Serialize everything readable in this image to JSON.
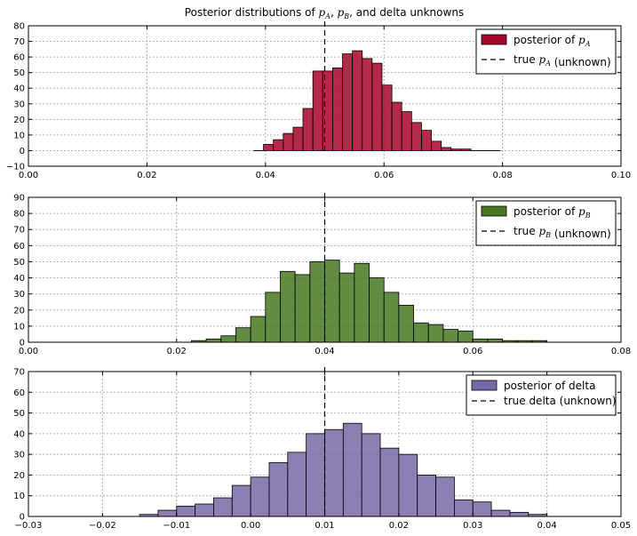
{
  "figure_title": "Posterior distributions of p_A, p_B, and delta unknowns",
  "chart_data": [
    {
      "type": "bar",
      "subtype": "histogram",
      "title": "Posterior distributions of p_A, p_B, and delta unknowns",
      "color": "#A60628",
      "xlim": [
        0.0,
        0.1
      ],
      "ylim": [
        -10,
        80
      ],
      "xticks": [
        0.0,
        0.02,
        0.04,
        0.06,
        0.08,
        0.1
      ],
      "xtick_labels": [
        "0.00",
        "0.02",
        "0.04",
        "0.06",
        "0.08",
        "0.10"
      ],
      "yticks": [
        -10,
        0,
        10,
        20,
        30,
        40,
        50,
        60,
        70,
        80
      ],
      "grid": true,
      "legend_position": "top-right",
      "legend": [
        "posterior of p_A",
        "true p_A (unknown)"
      ],
      "true_value": 0.05,
      "bins": [
        {
          "x": 0.038,
          "y": 0
        },
        {
          "x": 0.039667,
          "y": 4
        },
        {
          "x": 0.041333,
          "y": 7
        },
        {
          "x": 0.043,
          "y": 11
        },
        {
          "x": 0.044667,
          "y": 15
        },
        {
          "x": 0.046333,
          "y": 27
        },
        {
          "x": 0.048,
          "y": 51
        },
        {
          "x": 0.049667,
          "y": 51
        },
        {
          "x": 0.051333,
          "y": 53
        },
        {
          "x": 0.053,
          "y": 62
        },
        {
          "x": 0.054667,
          "y": 64
        },
        {
          "x": 0.056333,
          "y": 59
        },
        {
          "x": 0.058,
          "y": 56
        },
        {
          "x": 0.059667,
          "y": 42
        },
        {
          "x": 0.061333,
          "y": 31
        },
        {
          "x": 0.063,
          "y": 25
        },
        {
          "x": 0.064667,
          "y": 18
        },
        {
          "x": 0.066333,
          "y": 13
        },
        {
          "x": 0.068,
          "y": 6
        },
        {
          "x": 0.069667,
          "y": 2
        },
        {
          "x": 0.071333,
          "y": 1
        },
        {
          "x": 0.073,
          "y": 1
        },
        {
          "x": 0.074667,
          "y": 0
        },
        {
          "x": 0.076333,
          "y": 0
        },
        {
          "x": 0.078,
          "y": 0
        }
      ],
      "bin_width": 0.001667
    },
    {
      "type": "bar",
      "subtype": "histogram",
      "title": "",
      "color": "#467821",
      "xlim": [
        0.0,
        0.08
      ],
      "ylim": [
        0,
        90
      ],
      "xticks": [
        0.0,
        0.02,
        0.04,
        0.06,
        0.08
      ],
      "xtick_labels": [
        "0.00",
        "0.02",
        "0.04",
        "0.06",
        "0.08"
      ],
      "yticks": [
        0,
        10,
        20,
        30,
        40,
        50,
        60,
        70,
        80,
        90
      ],
      "grid": true,
      "legend_position": "top-right",
      "legend": [
        "posterior of p_B",
        "true p_B (unknown)"
      ],
      "true_value": 0.04,
      "bins": [
        {
          "x": 0.02,
          "y": 0
        },
        {
          "x": 0.022,
          "y": 1
        },
        {
          "x": 0.024,
          "y": 2
        },
        {
          "x": 0.026,
          "y": 4
        },
        {
          "x": 0.028,
          "y": 9
        },
        {
          "x": 0.03,
          "y": 16
        },
        {
          "x": 0.032,
          "y": 31
        },
        {
          "x": 0.034,
          "y": 44
        },
        {
          "x": 0.036,
          "y": 42
        },
        {
          "x": 0.038,
          "y": 50
        },
        {
          "x": 0.04,
          "y": 51
        },
        {
          "x": 0.042,
          "y": 43
        },
        {
          "x": 0.044,
          "y": 49
        },
        {
          "x": 0.046,
          "y": 40
        },
        {
          "x": 0.048,
          "y": 31
        },
        {
          "x": 0.05,
          "y": 23
        },
        {
          "x": 0.052,
          "y": 12
        },
        {
          "x": 0.054,
          "y": 11
        },
        {
          "x": 0.056,
          "y": 8
        },
        {
          "x": 0.058,
          "y": 7
        },
        {
          "x": 0.06,
          "y": 2
        },
        {
          "x": 0.062,
          "y": 2
        },
        {
          "x": 0.064,
          "y": 1
        },
        {
          "x": 0.066,
          "y": 1
        },
        {
          "x": 0.068,
          "y": 1
        },
        {
          "x": 0.07,
          "y": 0
        }
      ],
      "bin_width": 0.002
    },
    {
      "type": "bar",
      "subtype": "histogram",
      "title": "",
      "color": "#7A68A6",
      "xlim": [
        -0.03,
        0.05
      ],
      "ylim": [
        0,
        70
      ],
      "xticks": [
        -0.03,
        -0.02,
        -0.01,
        0.0,
        0.01,
        0.02,
        0.03,
        0.04,
        0.05
      ],
      "xtick_labels": [
        "−0.03",
        "−0.02",
        "−0.01",
        "0.00",
        "0.01",
        "0.02",
        "0.03",
        "0.04",
        "0.05"
      ],
      "yticks": [
        0,
        10,
        20,
        30,
        40,
        50,
        60,
        70
      ],
      "grid": true,
      "legend_position": "top-right",
      "legend": [
        "posterior of delta",
        "true delta (unknown)"
      ],
      "true_value": 0.01,
      "bins": [
        {
          "x": -0.0275,
          "y": 0
        },
        {
          "x": -0.025,
          "y": 0
        },
        {
          "x": -0.0225,
          "y": 0
        },
        {
          "x": -0.02,
          "y": 0
        },
        {
          "x": -0.0175,
          "y": 0
        },
        {
          "x": -0.015,
          "y": 1
        },
        {
          "x": -0.0125,
          "y": 3
        },
        {
          "x": -0.01,
          "y": 5
        },
        {
          "x": -0.0075,
          "y": 6
        },
        {
          "x": -0.005,
          "y": 9
        },
        {
          "x": -0.0025,
          "y": 15
        },
        {
          "x": 0.0,
          "y": 19
        },
        {
          "x": 0.0025,
          "y": 26
        },
        {
          "x": 0.005,
          "y": 31
        },
        {
          "x": 0.0075,
          "y": 40
        },
        {
          "x": 0.01,
          "y": 42
        },
        {
          "x": 0.0125,
          "y": 45
        },
        {
          "x": 0.015,
          "y": 40
        },
        {
          "x": 0.0175,
          "y": 33
        },
        {
          "x": 0.02,
          "y": 30
        },
        {
          "x": 0.0225,
          "y": 20
        },
        {
          "x": 0.025,
          "y": 19
        },
        {
          "x": 0.0275,
          "y": 8
        },
        {
          "x": 0.03,
          "y": 7
        },
        {
          "x": 0.0325,
          "y": 3
        },
        {
          "x": 0.035,
          "y": 2
        },
        {
          "x": 0.0375,
          "y": 1
        },
        {
          "x": 0.04,
          "y": 0
        },
        {
          "x": 0.0425,
          "y": 0
        },
        {
          "x": 0.045,
          "y": 0
        }
      ],
      "bin_width": 0.0025
    }
  ]
}
